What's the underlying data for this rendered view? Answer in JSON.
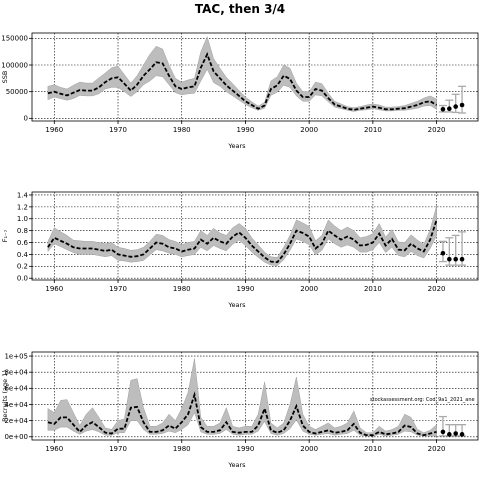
{
  "figure": {
    "title": "TAC, then 3/4",
    "annotation": "stockassessment.org: Cod_9a1_2021_ane"
  },
  "chart_data": [
    {
      "type": "line",
      "name": "panel-ssb",
      "xlabel": "Years",
      "ylabel": "SSB",
      "xlim": [
        1956.5,
        2026.5
      ],
      "ylim": [
        -5000,
        160000
      ],
      "xticks": [
        1960,
        1970,
        1980,
        1990,
        2000,
        2010,
        2020
      ],
      "yticks": [
        0,
        50000,
        100000,
        150000
      ],
      "ytick_labels": [
        "0",
        "50000",
        "100000",
        "150000"
      ],
      "grid": true,
      "years": [
        1959,
        1960,
        1961,
        1962,
        1963,
        1964,
        1965,
        1966,
        1967,
        1968,
        1969,
        1970,
        1971,
        1972,
        1973,
        1974,
        1975,
        1976,
        1977,
        1978,
        1979,
        1980,
        1981,
        1982,
        1983,
        1984,
        1985,
        1986,
        1987,
        1988,
        1989,
        1990,
        1991,
        1992,
        1993,
        1994,
        1995,
        1996,
        1997,
        1998,
        1999,
        2000,
        2001,
        2002,
        2003,
        2004,
        2005,
        2006,
        2007,
        2008,
        2009,
        2010,
        2011,
        2012,
        2013,
        2014,
        2015,
        2016,
        2017,
        2018,
        2019,
        2020
      ],
      "estimate": [
        47000,
        50000,
        46000,
        43000,
        48000,
        53000,
        52000,
        52000,
        58000,
        68000,
        75000,
        77000,
        65000,
        52000,
        63000,
        80000,
        92000,
        105000,
        103000,
        80000,
        60000,
        55000,
        58000,
        60000,
        95000,
        120000,
        88000,
        75000,
        62000,
        52000,
        42000,
        32000,
        25000,
        18000,
        24000,
        55000,
        62000,
        80000,
        74000,
        52000,
        40000,
        40000,
        55000,
        52000,
        38000,
        26000,
        22000,
        18000,
        16000,
        18000,
        20000,
        22000,
        20000,
        17000,
        17000,
        18000,
        19000,
        22000,
        25000,
        30000,
        32000,
        25000
      ],
      "lower": [
        35000,
        40000,
        37000,
        34000,
        37000,
        43000,
        42000,
        42000,
        46000,
        55000,
        58000,
        58000,
        50000,
        41000,
        50000,
        63000,
        70000,
        80000,
        78000,
        63000,
        48000,
        44000,
        46000,
        47000,
        70000,
        92000,
        67000,
        60000,
        50000,
        42000,
        34000,
        26000,
        20000,
        15000,
        19000,
        43000,
        49000,
        62000,
        58000,
        42000,
        32000,
        32000,
        44000,
        42000,
        31000,
        21000,
        18000,
        15000,
        13000,
        15000,
        16000,
        18000,
        16000,
        14000,
        14000,
        15000,
        15000,
        17000,
        19000,
        23000,
        24000,
        17000
      ],
      "upper": [
        60000,
        63000,
        58000,
        55000,
        62000,
        68000,
        66000,
        66000,
        76000,
        85000,
        95000,
        98000,
        82000,
        66000,
        80000,
        100000,
        120000,
        135000,
        130000,
        100000,
        75000,
        68000,
        72000,
        75000,
        125000,
        153000,
        112000,
        94000,
        77000,
        65000,
        52000,
        40000,
        31000,
        23000,
        30000,
        70000,
        78000,
        100000,
        94000,
        66000,
        50000,
        50000,
        68000,
        65000,
        47000,
        32000,
        27000,
        22000,
        20000,
        22000,
        25000,
        27000,
        25000,
        21000,
        21000,
        22000,
        24000,
        28000,
        32000,
        38000,
        42000,
        36000
      ],
      "forecast": {
        "years": [
          2021,
          2022,
          2023,
          2024
        ],
        "median": [
          17000,
          18000,
          22000,
          25000
        ],
        "low": [
          12000,
          12000,
          11000,
          10000
        ],
        "high": [
          24000,
          34000,
          45000,
          60000
        ]
      }
    },
    {
      "type": "line",
      "name": "panel-f",
      "xlabel": "Years",
      "ylabel": "F₁₋₇",
      "xlim": [
        1956.5,
        2026.5
      ],
      "ylim": [
        -0.03,
        1.45
      ],
      "xticks": [
        1960,
        1970,
        1980,
        1990,
        2000,
        2010,
        2020
      ],
      "yticks": [
        0,
        0.2,
        0.4,
        0.6,
        0.8,
        1.0,
        1.2,
        1.4
      ],
      "ytick_labels": [
        "0.0",
        "0.2",
        "0.4",
        "0.6",
        "0.8",
        "1.0",
        "1.2",
        "1.4"
      ],
      "grid": true,
      "years": [
        1959,
        1960,
        1961,
        1962,
        1963,
        1964,
        1965,
        1966,
        1967,
        1968,
        1969,
        1970,
        1971,
        1972,
        1973,
        1974,
        1975,
        1976,
        1977,
        1978,
        1979,
        1980,
        1981,
        1982,
        1983,
        1984,
        1985,
        1986,
        1987,
        1988,
        1989,
        1990,
        1991,
        1992,
        1993,
        1994,
        1995,
        1996,
        1997,
        1998,
        1999,
        2000,
        2001,
        2002,
        2003,
        2004,
        2005,
        2006,
        2007,
        2008,
        2009,
        2010,
        2011,
        2012,
        2013,
        2014,
        2015,
        2016,
        2017,
        2018,
        2019,
        2020
      ],
      "estimate": [
        0.52,
        0.68,
        0.63,
        0.58,
        0.52,
        0.5,
        0.5,
        0.5,
        0.48,
        0.46,
        0.48,
        0.4,
        0.38,
        0.36,
        0.37,
        0.4,
        0.5,
        0.6,
        0.58,
        0.52,
        0.5,
        0.45,
        0.48,
        0.5,
        0.65,
        0.58,
        0.68,
        0.62,
        0.58,
        0.7,
        0.77,
        0.68,
        0.55,
        0.45,
        0.35,
        0.28,
        0.27,
        0.4,
        0.58,
        0.8,
        0.76,
        0.7,
        0.5,
        0.58,
        0.8,
        0.72,
        0.65,
        0.7,
        0.65,
        0.55,
        0.56,
        0.6,
        0.75,
        0.55,
        0.66,
        0.48,
        0.47,
        0.58,
        0.5,
        0.45,
        0.65,
        0.98
      ],
      "lower": [
        0.45,
        0.58,
        0.53,
        0.48,
        0.43,
        0.4,
        0.4,
        0.4,
        0.38,
        0.36,
        0.38,
        0.3,
        0.29,
        0.27,
        0.28,
        0.3,
        0.39,
        0.48,
        0.46,
        0.42,
        0.4,
        0.36,
        0.38,
        0.4,
        0.52,
        0.46,
        0.55,
        0.5,
        0.46,
        0.57,
        0.64,
        0.55,
        0.44,
        0.35,
        0.27,
        0.22,
        0.21,
        0.31,
        0.47,
        0.66,
        0.62,
        0.56,
        0.39,
        0.47,
        0.66,
        0.58,
        0.52,
        0.56,
        0.52,
        0.44,
        0.44,
        0.48,
        0.6,
        0.43,
        0.52,
        0.38,
        0.36,
        0.45,
        0.38,
        0.34,
        0.5,
        0.72
      ],
      "upper": [
        0.62,
        0.85,
        0.78,
        0.72,
        0.64,
        0.63,
        0.62,
        0.62,
        0.6,
        0.58,
        0.6,
        0.52,
        0.5,
        0.47,
        0.48,
        0.52,
        0.62,
        0.74,
        0.72,
        0.65,
        0.62,
        0.56,
        0.6,
        0.62,
        0.8,
        0.72,
        0.84,
        0.76,
        0.72,
        0.85,
        0.92,
        0.84,
        0.68,
        0.56,
        0.44,
        0.36,
        0.35,
        0.52,
        0.72,
        0.98,
        0.93,
        0.87,
        0.63,
        0.72,
        0.98,
        0.88,
        0.8,
        0.86,
        0.8,
        0.68,
        0.7,
        0.75,
        0.92,
        0.69,
        0.82,
        0.61,
        0.6,
        0.73,
        0.64,
        0.57,
        0.82,
        1.22
      ],
      "forecast": {
        "years": [
          2021,
          2022,
          2023,
          2024
        ],
        "median": [
          0.42,
          0.32,
          0.32,
          0.32
        ],
        "low": [
          0.28,
          0.22,
          0.22,
          0.22
        ],
        "high": [
          0.62,
          0.68,
          0.72,
          0.78
        ]
      }
    },
    {
      "type": "line",
      "name": "panel-rec",
      "xlabel": "Years",
      "ylabel": "Recruits (age 1)",
      "xlim": [
        1956.5,
        2026.5
      ],
      "ylim": [
        -4000,
        105000
      ],
      "xticks": [
        1960,
        1970,
        1980,
        1990,
        2000,
        2010,
        2020
      ],
      "yticks": [
        0,
        20000,
        40000,
        60000,
        80000,
        100000
      ],
      "ytick_labels": [
        "0e+00",
        "2e+04",
        "4e+04",
        "6e+04",
        "8e+04",
        "1e+05"
      ],
      "grid": true,
      "years": [
        1959,
        1960,
        1961,
        1962,
        1963,
        1964,
        1965,
        1966,
        1967,
        1968,
        1969,
        1970,
        1971,
        1972,
        1973,
        1974,
        1975,
        1976,
        1977,
        1978,
        1979,
        1980,
        1981,
        1982,
        1983,
        1984,
        1985,
        1986,
        1987,
        1988,
        1989,
        1990,
        1991,
        1992,
        1993,
        1994,
        1995,
        1996,
        1997,
        1998,
        1999,
        2000,
        2001,
        2002,
        2003,
        2004,
        2005,
        2006,
        2007,
        2008,
        2009,
        2010,
        2011,
        2012,
        2013,
        2014,
        2015,
        2016,
        2017,
        2018,
        2019,
        2020
      ],
      "estimate": [
        18000,
        16000,
        24000,
        24000,
        15000,
        6000,
        14000,
        18000,
        12000,
        5000,
        4000,
        10000,
        10000,
        36000,
        37000,
        18000,
        6000,
        6000,
        8000,
        14000,
        10000,
        18000,
        28000,
        52000,
        12000,
        6000,
        6000,
        8000,
        18000,
        6000,
        5000,
        6000,
        6000,
        14000,
        35000,
        8000,
        5000,
        8000,
        20000,
        38000,
        14000,
        6000,
        4000,
        6000,
        8000,
        5000,
        6000,
        8000,
        16000,
        5000,
        2000,
        2000,
        6000,
        3000,
        4000,
        6000,
        14000,
        12000,
        4000,
        2000,
        4000,
        6000
      ],
      "lower": [
        8000,
        8000,
        12000,
        12000,
        7000,
        3000,
        7000,
        9000,
        6000,
        2000,
        2000,
        5000,
        5000,
        20000,
        20000,
        9000,
        3000,
        3000,
        4000,
        7000,
        5000,
        9000,
        15000,
        30000,
        6000,
        3000,
        3000,
        4000,
        9000,
        3000,
        2000,
        3000,
        3000,
        7000,
        19000,
        4000,
        2000,
        4000,
        10000,
        21000,
        7000,
        3000,
        2000,
        3000,
        4000,
        2000,
        3000,
        4000,
        8000,
        2000,
        1000,
        1000,
        3000,
        1000,
        2000,
        3000,
        7000,
        6000,
        2000,
        1000,
        1000,
        1000
      ],
      "upper": [
        35000,
        30000,
        45000,
        46000,
        30000,
        14000,
        28000,
        36000,
        24000,
        11000,
        9000,
        20000,
        22000,
        70000,
        72000,
        36000,
        13000,
        13000,
        17000,
        28000,
        20000,
        35000,
        55000,
        97000,
        24000,
        13000,
        13000,
        17000,
        36000,
        13000,
        11000,
        13000,
        13000,
        28000,
        68000,
        17000,
        11000,
        17000,
        40000,
        74000,
        28000,
        13000,
        9000,
        13000,
        17000,
        11000,
        13000,
        17000,
        32000,
        11000,
        5000,
        5000,
        13000,
        7000,
        9000,
        13000,
        28000,
        24000,
        9000,
        5000,
        8000,
        15000
      ],
      "forecast": {
        "years": [
          2021,
          2022,
          2023,
          2024
        ],
        "median": [
          6000,
          3000,
          4000,
          3000
        ],
        "low": [
          1000,
          1000,
          1000,
          1000
        ],
        "high": [
          25000,
          15000,
          15000,
          15000
        ]
      }
    }
  ]
}
